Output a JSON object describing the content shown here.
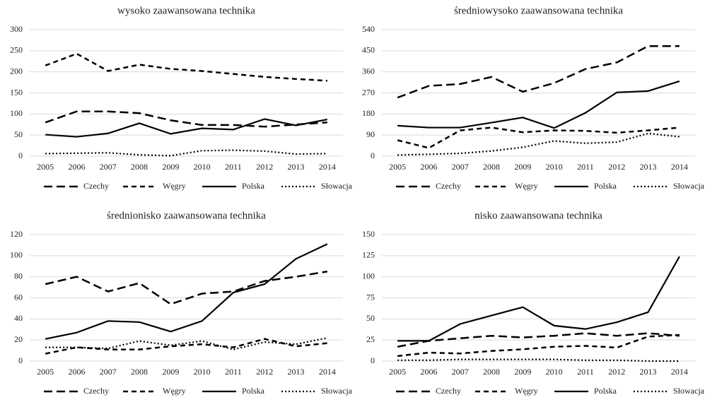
{
  "chart_data": [
    {
      "type": "line",
      "title": "wysoko zaawansowana technika",
      "categories": [
        "2005",
        "2006",
        "2007",
        "2008",
        "2009",
        "2010",
        "2011",
        "2012",
        "2013",
        "2014"
      ],
      "series": [
        {
          "name": "Czechy",
          "color": "#000000",
          "values": [
            80,
            106,
            106,
            102,
            85,
            74,
            74,
            70,
            75,
            80
          ]
        },
        {
          "name": "Węgry",
          "color": "#000000",
          "values": [
            215,
            243,
            202,
            217,
            207,
            202,
            195,
            188,
            183,
            179
          ]
        },
        {
          "name": "Polska",
          "color": "#000000",
          "values": [
            51,
            46,
            54,
            78,
            53,
            66,
            63,
            88,
            73,
            87
          ]
        },
        {
          "name": "Słowacja",
          "color": "#000000",
          "values": [
            6,
            7,
            8,
            3,
            1,
            13,
            14,
            12,
            5,
            6
          ]
        }
      ],
      "ylim": [
        0,
        300
      ],
      "yticks": [
        0,
        50,
        100,
        150,
        200,
        250,
        300
      ],
      "grid": true
    },
    {
      "type": "line",
      "title": "średniowysoko zaawansowana technika",
      "categories": [
        "2005",
        "2006",
        "2007",
        "2008",
        "2009",
        "2010",
        "2011",
        "2012",
        "2013",
        "2014"
      ],
      "series": [
        {
          "name": "Czechy",
          "color": "#000000",
          "values": [
            250,
            300,
            308,
            338,
            275,
            312,
            372,
            400,
            470,
            470
          ]
        },
        {
          "name": "Węgry",
          "color": "#000000",
          "values": [
            68,
            35,
            110,
            122,
            102,
            110,
            108,
            100,
            110,
            122
          ]
        },
        {
          "name": "Polska",
          "color": "#000000",
          "values": [
            130,
            122,
            122,
            143,
            165,
            120,
            185,
            272,
            278,
            320
          ]
        },
        {
          "name": "Słowacja",
          "color": "#000000",
          "values": [
            5,
            8,
            12,
            22,
            38,
            65,
            55,
            60,
            97,
            83
          ]
        }
      ],
      "ylim": [
        0,
        540
      ],
      "yticks": [
        0,
        90,
        180,
        270,
        360,
        450,
        540
      ],
      "grid": true
    },
    {
      "type": "line",
      "title": "średnionisko zaawansowana technika",
      "categories": [
        "2005",
        "2006",
        "2007",
        "2008",
        "2009",
        "2010",
        "2011",
        "2012",
        "2013",
        "2014"
      ],
      "series": [
        {
          "name": "Czechy",
          "color": "#000000",
          "values": [
            73,
            80,
            66,
            74,
            54,
            64,
            66,
            76,
            80,
            85
          ]
        },
        {
          "name": "Węgry",
          "color": "#000000",
          "values": [
            7,
            13,
            11,
            11,
            14,
            16,
            13,
            21,
            14,
            17
          ]
        },
        {
          "name": "Polska",
          "color": "#000000",
          "values": [
            21,
            27,
            38,
            37,
            28,
            38,
            65,
            73,
            97,
            111
          ]
        },
        {
          "name": "Słowacja",
          "color": "#000000",
          "values": [
            13,
            13,
            12,
            19,
            15,
            19,
            11,
            18,
            16,
            22
          ]
        }
      ],
      "ylim": [
        0,
        120
      ],
      "yticks": [
        0,
        20,
        40,
        60,
        80,
        100,
        120
      ],
      "grid": true
    },
    {
      "type": "line",
      "title": "nisko zaawansowana technika",
      "categories": [
        "2005",
        "2006",
        "2007",
        "2008",
        "2009",
        "2010",
        "2011",
        "2012",
        "2013",
        "2014"
      ],
      "series": [
        {
          "name": "Czechy",
          "color": "#000000",
          "values": [
            17,
            24,
            27,
            30,
            28,
            30,
            33,
            30,
            33,
            30
          ]
        },
        {
          "name": "Węgry",
          "color": "#000000",
          "values": [
            6,
            10,
            9,
            12,
            14,
            17,
            18,
            16,
            29,
            31
          ]
        },
        {
          "name": "Polska",
          "color": "#000000",
          "values": [
            24,
            24,
            44,
            54,
            64,
            42,
            38,
            46,
            58,
            124
          ]
        },
        {
          "name": "Słowacja",
          "color": "#000000",
          "values": [
            1,
            1,
            2,
            2,
            2,
            2,
            1,
            1,
            0,
            0
          ]
        }
      ],
      "ylim": [
        0,
        150
      ],
      "yticks": [
        0,
        25,
        50,
        75,
        100,
        125,
        150
      ],
      "grid": true
    }
  ]
}
